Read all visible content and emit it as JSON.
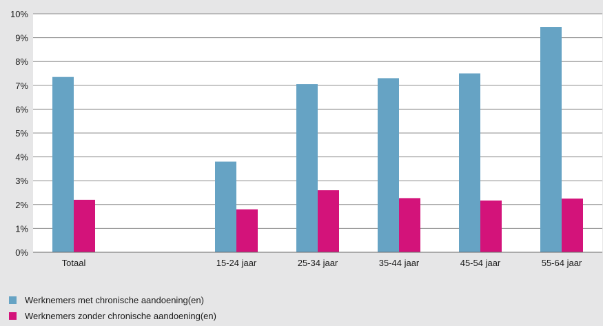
{
  "chart_data": {
    "type": "bar",
    "categories": [
      "Totaal",
      "",
      "15-24 jaar",
      "25-34 jaar",
      "35-44 jaar",
      "45-54 jaar",
      "55-64 jaar"
    ],
    "series": [
      {
        "name": "Werknemers met chronische aandoening(en)",
        "color": "#66a3c4",
        "values": [
          7.35,
          null,
          3.8,
          7.05,
          7.3,
          7.5,
          9.45
        ]
      },
      {
        "name": "Werknemers zonder chronische aandoening(en)",
        "color": "#d3137a",
        "values": [
          2.2,
          null,
          1.8,
          2.6,
          2.27,
          2.17,
          2.25
        ]
      }
    ],
    "ylim": [
      0,
      10
    ],
    "yticks": [
      "0%",
      "1%",
      "2%",
      "3%",
      "4%",
      "5%",
      "6%",
      "7%",
      "8%",
      "9%",
      "10%"
    ],
    "grid": true,
    "legend_position": "bottom-left",
    "title": "",
    "xlabel": "",
    "ylabel": ""
  }
}
